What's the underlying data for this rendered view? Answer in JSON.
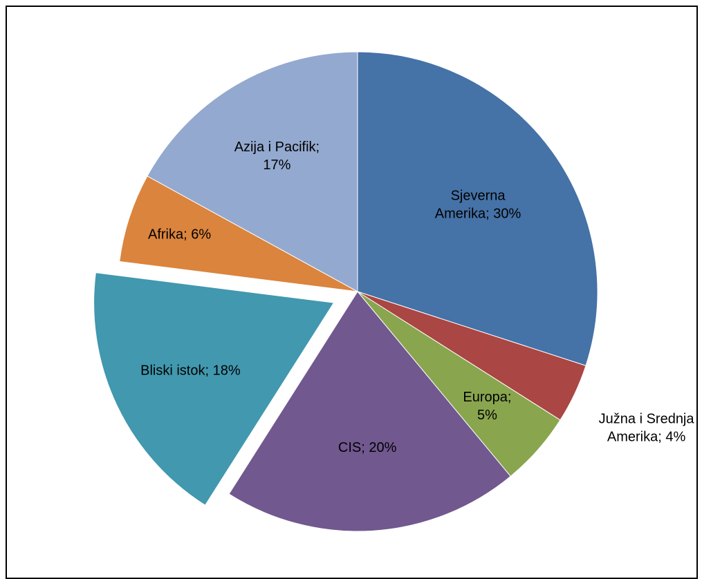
{
  "chart_data": {
    "type": "pie",
    "title": "",
    "slices": [
      {
        "name": "Sjeverna Amerika",
        "label_lines": [
          "Sjeverna",
          "Amerika; 30%"
        ],
        "value": 30,
        "color": "#4572A7",
        "exploded": false
      },
      {
        "name": "Južna i Srednja Amerika",
        "label_lines": [
          "Južna i Srednja",
          "Amerika; 4%"
        ],
        "value": 4,
        "color": "#AA4643",
        "exploded": false,
        "label_outside": true
      },
      {
        "name": "Europa",
        "label_lines": [
          "Europa;",
          "5%"
        ],
        "value": 5,
        "color": "#89A54E",
        "exploded": false
      },
      {
        "name": "CIS",
        "label_lines": [
          "CIS; 20%"
        ],
        "value": 20,
        "color": "#71588F",
        "exploded": false
      },
      {
        "name": "Bliski istok",
        "label_lines": [
          "Bliski istok; 18%"
        ],
        "value": 18,
        "color": "#4198AF",
        "exploded": true
      },
      {
        "name": "Afrika",
        "label_lines": [
          "Afrika; 6%"
        ],
        "value": 6,
        "color": "#DB843D",
        "exploded": false
      },
      {
        "name": "Azija i Pacifik",
        "label_lines": [
          "Azija i Pacifik;",
          "17%"
        ],
        "value": 17,
        "color": "#93A9CF",
        "exploded": false
      }
    ],
    "start_angle": "12 o'clock",
    "direction": "clockwise",
    "legend": "none"
  }
}
